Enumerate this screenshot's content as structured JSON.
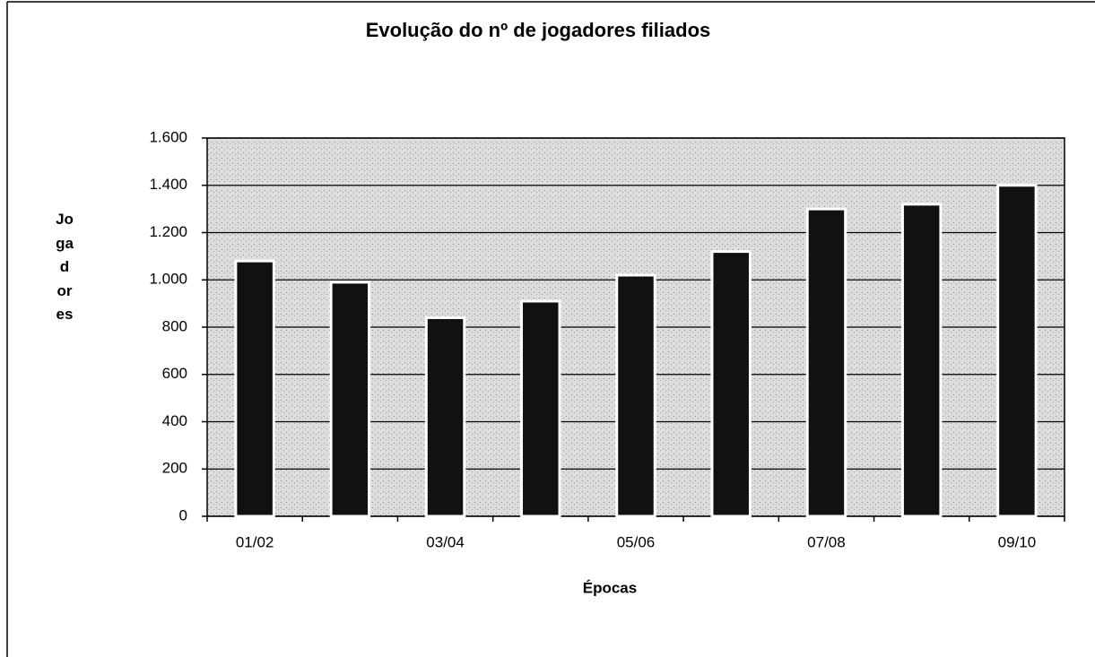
{
  "chart_data": {
    "type": "bar",
    "title": "Evolução do nº de jogadores filiados",
    "x_label": "Épocas",
    "y_label": "Jogadores",
    "categories": [
      "01/02",
      null,
      "03/04",
      null,
      "05/06",
      null,
      "07/08",
      null,
      "09/10"
    ],
    "values": [
      1080,
      990,
      840,
      910,
      1020,
      1120,
      1300,
      1320,
      1400
    ],
    "color": "#111111",
    "ylim": [
      0,
      1600
    ],
    "yticks": [
      0,
      200,
      400,
      600,
      800,
      {
        "value": 1000,
        "label": "1.000"
      },
      {
        "value": 1200,
        "label": "1.200"
      },
      {
        "value": 1400,
        "label": "1.400"
      },
      {
        "value": 1600,
        "label": "1.600"
      }
    ],
    "grid": true
  }
}
